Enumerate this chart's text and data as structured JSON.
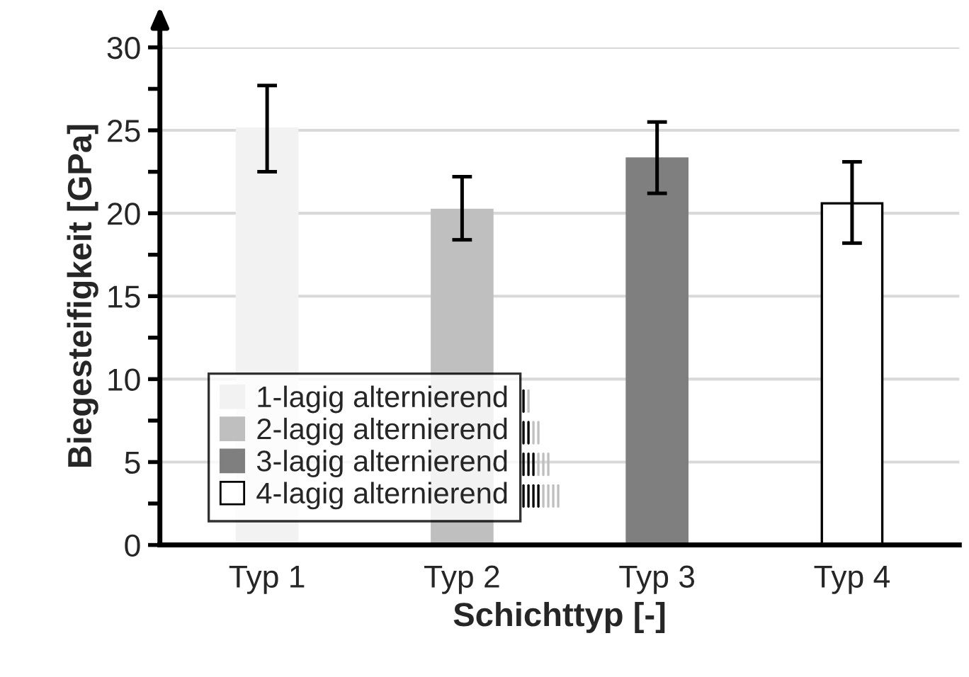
{
  "chart_data": {
    "type": "bar",
    "xlabel": "Schichttyp [-]",
    "ylabel": "Biegesteifigkeit [GPa]",
    "categories": [
      "Typ 1",
      "Typ 2",
      "Typ 3",
      "Typ 4"
    ],
    "series": [
      {
        "name": "1-lagig alternierend",
        "color": "#f2f2f2",
        "values": [
          25.1,
          null,
          null,
          null
        ],
        "errors": [
          [
            22.5,
            27.7
          ],
          null,
          null,
          null
        ]
      },
      {
        "name": "2-lagig alternierend",
        "color": "#bfbfbf",
        "values": [
          null,
          20.2,
          null,
          null
        ],
        "errors": [
          null,
          [
            18.4,
            22.2
          ],
          null,
          null
        ]
      },
      {
        "name": "3-lagig alternierend",
        "color": "#7f7f7f",
        "values": [
          null,
          null,
          23.3,
          null
        ],
        "errors": [
          null,
          null,
          [
            21.2,
            25.5
          ],
          null
        ]
      },
      {
        "name": "4-lagig alternierend",
        "color": "#ffffff",
        "values": [
          null,
          null,
          null,
          20.6
        ],
        "errors": [
          null,
          null,
          null,
          [
            18.2,
            23.1
          ]
        ]
      }
    ],
    "ylim": [
      0,
      30
    ],
    "yticks": [
      0,
      5,
      10,
      15,
      20,
      25,
      30
    ],
    "grid": "y",
    "legend": "bottom left"
  }
}
